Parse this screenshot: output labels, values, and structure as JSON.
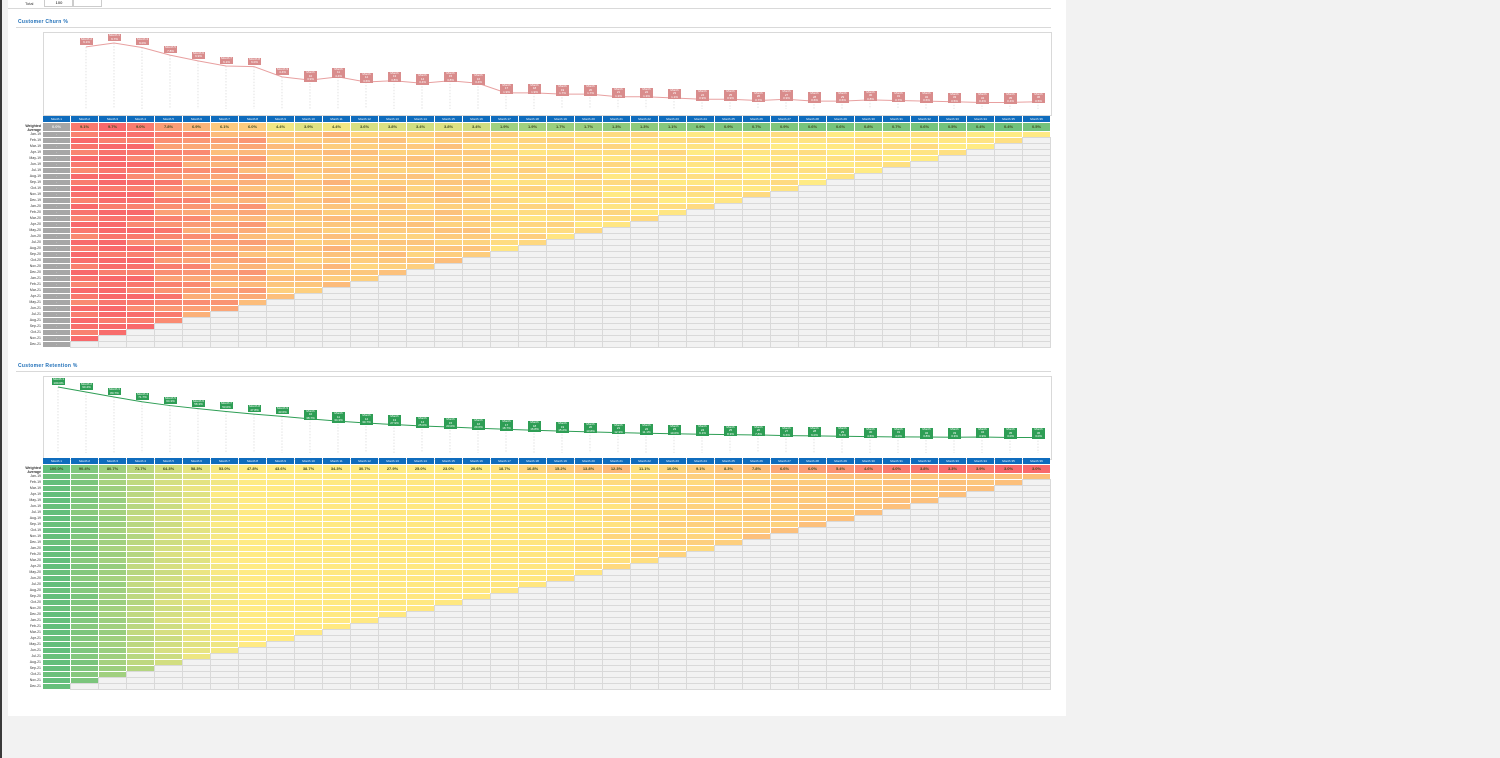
{
  "top_stub": {
    "label": "Total",
    "value": "100"
  },
  "churn": {
    "title": "Customer Churn %",
    "summary_label": "Weighted Average",
    "line_color": "#e8a0a0",
    "label_color": "#d98c8c",
    "months": [
      "Month 1",
      "Month 2",
      "Month 3",
      "Month 4",
      "Month 5",
      "Month 6",
      "Month 7",
      "Month 8",
      "Month 9",
      "Month 10",
      "Month 11",
      "Month 12",
      "Month 13",
      "Month 14",
      "Month 15",
      "Month 16",
      "Month 17",
      "Month 18",
      "Month 19",
      "Month 20",
      "Month 21",
      "Month 22",
      "Month 23",
      "Month 24",
      "Month 25",
      "Month 26",
      "Month 27",
      "Month 28",
      "Month 29",
      "Month 30",
      "Month 31",
      "Month 32",
      "Month 33",
      "Month 34",
      "Month 35",
      "Month 36"
    ],
    "summary": [
      "0.0%",
      "9.1%",
      "9.7%",
      "9.0%",
      "7.8%",
      "6.9%",
      "6.1%",
      "6.0%",
      "4.4%",
      "3.9%",
      "4.4%",
      "3.6%",
      "3.8%",
      "3.4%",
      "3.8%",
      "3.4%",
      "1.9%",
      "1.9%",
      "1.7%",
      "1.7%",
      "1.3%",
      "1.3%",
      "1.1%",
      "0.9%",
      "0.9%",
      "0.7%",
      "0.9%",
      "0.6%",
      "0.6%",
      "0.8%",
      "0.7%",
      "0.6%",
      "0.5%",
      "0.4%",
      "0.4%",
      "0.5%"
    ]
  },
  "retention": {
    "title": "Customer Retention %",
    "summary_label": "Weighted Average",
    "line_color": "#2e9e55",
    "label_color": "#2e9e55",
    "months": [
      "Month 1",
      "Month 2",
      "Month 3",
      "Month 4",
      "Month 5",
      "Month 6",
      "Month 7",
      "Month 8",
      "Month 9",
      "Month 10",
      "Month 11",
      "Month 12",
      "Month 13",
      "Month 14",
      "Month 15",
      "Month 16",
      "Month 17",
      "Month 18",
      "Month 19",
      "Month 20",
      "Month 21",
      "Month 22",
      "Month 23",
      "Month 24",
      "Month 25",
      "Month 26",
      "Month 27",
      "Month 28",
      "Month 29",
      "Month 30",
      "Month 31",
      "Month 32",
      "Month 33",
      "Month 34",
      "Month 35",
      "Month 36"
    ],
    "summary": [
      "100.0%",
      "90.4%",
      "80.7%",
      "71.7%",
      "64.3%",
      "58.3%",
      "53.0%",
      "47.8%",
      "43.6%",
      "38.7%",
      "34.3%",
      "30.7%",
      "27.9%",
      "25.0%",
      "23.0%",
      "20.6%",
      "18.7%",
      "16.8%",
      "15.2%",
      "13.8%",
      "12.3%",
      "11.1%",
      "10.0%",
      "9.1%",
      "8.3%",
      "7.8%",
      "6.6%",
      "6.0%",
      "5.4%",
      "4.6%",
      "4.0%",
      "3.8%",
      "3.3%",
      "3.9%",
      "3.0%",
      "3.0%"
    ]
  },
  "cohorts": [
    "Jan-19",
    "Feb-19",
    "Mar-19",
    "Apr-19",
    "May-19",
    "Jun-19",
    "Jul-19",
    "Aug-19",
    "Sep-19",
    "Oct-19",
    "Nov-19",
    "Dec-19",
    "Jan-20",
    "Feb-20",
    "Mar-20",
    "Apr-20",
    "May-20",
    "Jun-20",
    "Jul-20",
    "Aug-20",
    "Sep-20",
    "Oct-20",
    "Nov-20",
    "Dec-20",
    "Jan-21",
    "Feb-21",
    "Mar-21",
    "Apr-21",
    "May-21",
    "Jun-21",
    "Jul-21",
    "Aug-21",
    "Sep-21",
    "Oct-21",
    "Nov-21",
    "Dec-21"
  ]
}
